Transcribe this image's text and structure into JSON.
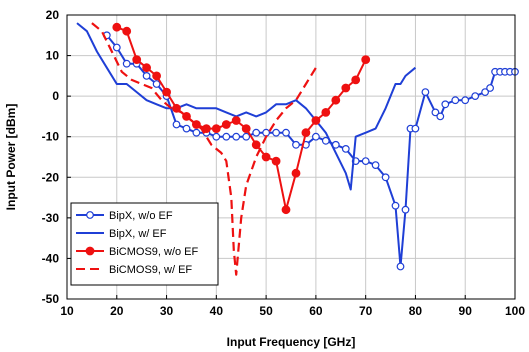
{
  "chart_data": {
    "type": "line",
    "xlabel": "Input Frequency [GHz]",
    "ylabel": "Input Power [dBm]",
    "xlim": [
      10,
      100
    ],
    "ylim": [
      -50,
      20
    ],
    "xticks": [
      10,
      20,
      30,
      40,
      50,
      60,
      70,
      80,
      90,
      100
    ],
    "yticks": [
      -50,
      -40,
      -30,
      -20,
      -10,
      0,
      10,
      20
    ],
    "grid": true,
    "legend_position": "bottom-left",
    "series": [
      {
        "name": "BipX, w/o EF",
        "color": "#1f3fd6",
        "style": "solid",
        "marker": "open-circle",
        "x": [
          18,
          20,
          22,
          24,
          26,
          28,
          30,
          32,
          34,
          36,
          38,
          40,
          42,
          44,
          46,
          48,
          50,
          52,
          54,
          56,
          58,
          60,
          62,
          64,
          66,
          68,
          70,
          72,
          74,
          76,
          77,
          78,
          79,
          80,
          82,
          84,
          85,
          86,
          88,
          90,
          92,
          94,
          95,
          96,
          97,
          98,
          99,
          100
        ],
        "y": [
          15,
          12,
          8,
          8,
          5,
          3,
          0,
          -7,
          -8,
          -9,
          -9,
          -10,
          -10,
          -10,
          -10,
          -9,
          -9,
          -9,
          -9,
          -12,
          -12,
          -10,
          -11,
          -12,
          -13,
          -16,
          -16,
          -17,
          -20,
          -27,
          -42,
          -28,
          -8,
          -8,
          1,
          -4,
          -5,
          -2,
          -1,
          -1,
          0,
          1,
          2,
          6,
          6,
          6,
          6,
          6
        ]
      },
      {
        "name": "BipX, w/ EF",
        "color": "#1f3fd6",
        "style": "solid",
        "marker": "none",
        "x": [
          12,
          14,
          16,
          18,
          20,
          22,
          24,
          26,
          28,
          30,
          32,
          34,
          36,
          38,
          40,
          42,
          44,
          46,
          48,
          50,
          52,
          54,
          56,
          58,
          60,
          62,
          64,
          66,
          67,
          68,
          70,
          72,
          74,
          76,
          77,
          78,
          80
        ],
        "y": [
          18,
          16,
          11,
          7,
          3,
          3,
          1,
          -1,
          -2,
          -3,
          -3,
          -2,
          -3,
          -3,
          -3,
          -4,
          -5,
          -4,
          -5,
          -4,
          -2,
          -2,
          -1,
          -3,
          -6,
          -9,
          -14,
          -19,
          -23,
          -10,
          -9,
          -8,
          -3,
          3,
          3,
          5,
          7
        ]
      },
      {
        "name": "BiCMOS9, w/o EF",
        "color": "#ee1111",
        "style": "solid",
        "marker": "filled-circle",
        "x": [
          20,
          22,
          24,
          26,
          28,
          30,
          32,
          34,
          36,
          38,
          40,
          42,
          44,
          46,
          48,
          50,
          52,
          54,
          56,
          58,
          60,
          62,
          64,
          66,
          68,
          70
        ],
        "y": [
          17,
          16,
          9,
          7,
          5,
          1,
          -3,
          -5,
          -7,
          -8,
          -8,
          -7,
          -6,
          -8,
          -12,
          -15,
          -16,
          -28,
          -19,
          -9,
          -6,
          -4,
          -1,
          2,
          4,
          9
        ]
      },
      {
        "name": "BiCMOS9, w/ EF",
        "color": "#ee1111",
        "style": "dashed",
        "marker": "none",
        "x": [
          15,
          17,
          19,
          21,
          23,
          25,
          27,
          29,
          31,
          33,
          35,
          37,
          39,
          40,
          41,
          42,
          43,
          43.5,
          44,
          45,
          46,
          48,
          50,
          52,
          54,
          56,
          58,
          60
        ],
        "y": [
          18,
          16,
          11,
          6,
          4,
          3,
          2,
          -1,
          -3,
          -4,
          -6,
          -8,
          -12,
          -13,
          -14,
          -16,
          -25,
          -38,
          -44,
          -30,
          -22,
          -15,
          -10,
          -6,
          -3,
          -1,
          3,
          7
        ]
      }
    ]
  }
}
